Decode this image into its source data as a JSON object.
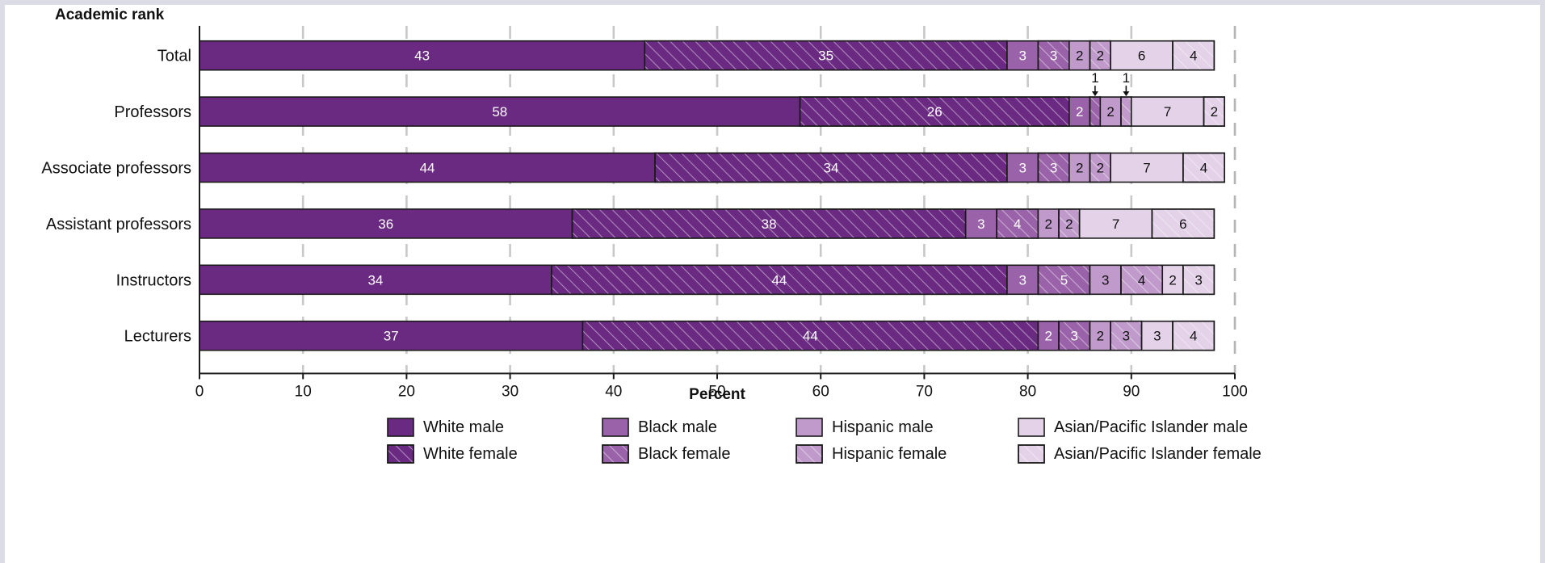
{
  "chart_data": {
    "type": "bar",
    "orientation": "horizontal",
    "stacked": true,
    "ylabel": "Academic rank",
    "xlabel": "Percent",
    "xlim": [
      0,
      100
    ],
    "x_ticks": [
      0,
      10,
      20,
      30,
      40,
      50,
      60,
      70,
      80,
      90,
      100
    ],
    "categories": [
      "Total",
      "Professors",
      "Associate professors",
      "Assistant professors",
      "Instructors",
      "Lecturers"
    ],
    "series": [
      {
        "name": "White male",
        "color": "#6a2a82",
        "hatch": false,
        "values": [
          43,
          58,
          44,
          36,
          34,
          37
        ]
      },
      {
        "name": "White female",
        "color": "#6a2a82",
        "hatch": true,
        "values": [
          35,
          26,
          34,
          38,
          44,
          44
        ]
      },
      {
        "name": "Black male",
        "color": "#9a62a8",
        "hatch": false,
        "values": [
          3,
          2,
          3,
          3,
          3,
          2
        ]
      },
      {
        "name": "Black female",
        "color": "#9a62a8",
        "hatch": true,
        "values": [
          3,
          1,
          3,
          4,
          5,
          3
        ]
      },
      {
        "name": "Hispanic male",
        "color": "#c09acb",
        "hatch": false,
        "values": [
          2,
          2,
          2,
          2,
          3,
          2
        ]
      },
      {
        "name": "Hispanic female",
        "color": "#c09acb",
        "hatch": true,
        "values": [
          2,
          1,
          2,
          2,
          4,
          3
        ]
      },
      {
        "name": "Asian/Pacific Islander male",
        "color": "#e3d2e8",
        "hatch": false,
        "values": [
          6,
          7,
          7,
          7,
          2,
          3
        ]
      },
      {
        "name": "Asian/Pacific Islander female",
        "color": "#e3d2e8",
        "hatch": true,
        "values": [
          4,
          2,
          4,
          6,
          3,
          4
        ]
      }
    ],
    "segment_labels": [
      [
        "43",
        "35",
        "3",
        "3",
        "2",
        "2",
        "6",
        "4"
      ],
      [
        "58",
        "26",
        "2",
        "",
        "2",
        "",
        "7",
        "2"
      ],
      [
        "44",
        "34",
        "3",
        "3",
        "2",
        "2",
        "7",
        "4"
      ],
      [
        "36",
        "38",
        "3",
        "4",
        "2",
        "2",
        "7",
        "6"
      ],
      [
        "34",
        "44",
        "3",
        "5",
        "3",
        "4",
        "2",
        "3"
      ],
      [
        "37",
        "44",
        "2",
        "3",
        "2",
        "3",
        "3",
        "4"
      ]
    ],
    "annotations": [
      {
        "category": "Professors",
        "series": "Black female",
        "text": "1"
      },
      {
        "category": "Professors",
        "series": "Hispanic female",
        "text": "1"
      }
    ],
    "grid": true,
    "legend_position": "bottom"
  }
}
